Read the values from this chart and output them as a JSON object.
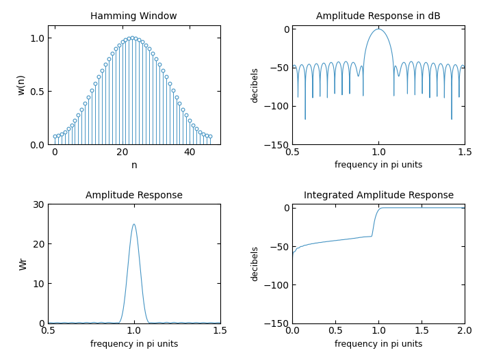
{
  "title_tl": "Hamming Window",
  "title_tr": "Amplitude Response in dB",
  "title_bl": "Amplitude Response",
  "title_br": "Integrated Amplitude Response",
  "xlabel_tl": "n",
  "ylabel_tl": "w(n)",
  "xlabel_tr": "frequency in pi units",
  "ylabel_tr": "decibels",
  "xlabel_bl": "frequency in pi units",
  "ylabel_bl": "Wr",
  "xlabel_br": "frequency in pi units",
  "ylabel_br": "decibels",
  "hamming_N": 47,
  "line_color": "#4393c3",
  "bg_color": "#ffffff",
  "ylim_tr": [
    -150,
    5
  ],
  "xlim_tr": [
    0.5,
    1.5
  ],
  "ylim_bl": [
    0,
    30
  ],
  "xlim_bl": [
    0.5,
    1.5
  ],
  "ylim_br": [
    -150,
    5
  ],
  "xlim_br": [
    0,
    2
  ],
  "yticks_tl": [
    0,
    0.5,
    1
  ],
  "xticks_tl": [
    0,
    20,
    40
  ],
  "yticks_tr": [
    0,
    -50,
    -100,
    -150
  ],
  "xticks_tr": [
    0.5,
    1.0,
    1.5
  ],
  "yticks_bl": [
    0,
    10,
    20,
    30
  ],
  "xticks_bl": [
    0.5,
    1.0,
    1.5
  ],
  "yticks_br": [
    0,
    -50,
    -100,
    -150
  ],
  "xticks_br": [
    0,
    0.5,
    1.0,
    1.5,
    2.0
  ]
}
